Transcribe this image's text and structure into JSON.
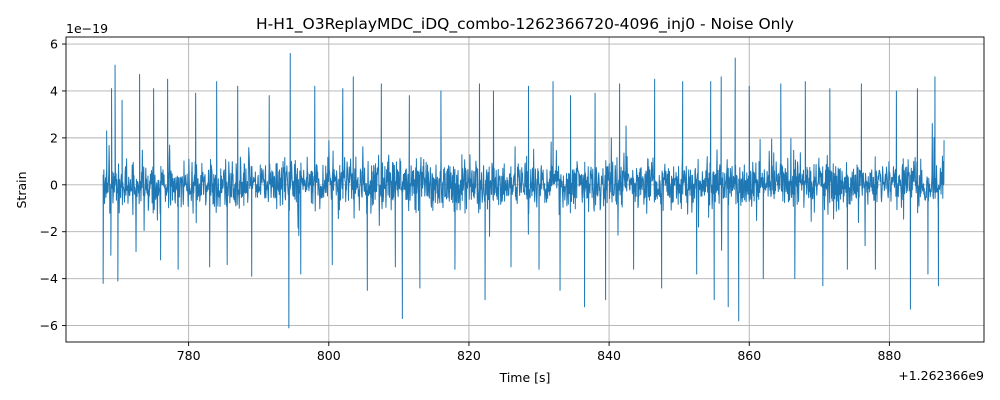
{
  "chart_data": {
    "type": "line",
    "title": "H-H1_O3ReplayMDC_iDQ_combo-1262366720-4096_inj0 - Noise Only",
    "xlabel": "Time [s]",
    "ylabel": "Strain",
    "x_offset_label": "+1.262366e9",
    "y_scale_label": "1e−19",
    "xlim": [
      762.5,
      893.5
    ],
    "ylim": [
      -6.7,
      6.3
    ],
    "x_ticks": [
      780,
      800,
      820,
      840,
      860,
      880
    ],
    "x_tick_labels": [
      "780",
      "800",
      "820",
      "840",
      "860",
      "880"
    ],
    "y_ticks": [
      -6,
      -4,
      -2,
      0,
      2,
      4,
      6
    ],
    "y_tick_labels": [
      "−6",
      "−4",
      "−2",
      "0",
      "2",
      "4",
      "6"
    ],
    "grid": true,
    "legend": "none",
    "line_color": "#1f77b4",
    "series": [
      {
        "x_range": [
          767.8,
          887.8
        ],
        "points": [
          [
            767.8,
            -4.2
          ],
          [
            768.3,
            2.3
          ],
          [
            768.9,
            -3.0
          ],
          [
            769.0,
            4.1
          ],
          [
            769.5,
            5.1
          ],
          [
            769.9,
            -4.1
          ],
          [
            770.5,
            3.6
          ],
          [
            773.0,
            4.7
          ],
          [
            775.0,
            4.1
          ],
          [
            776.0,
            -3.2
          ],
          [
            777.0,
            4.5
          ],
          [
            778.5,
            -3.6
          ],
          [
            781.0,
            3.9
          ],
          [
            783.0,
            -3.5
          ],
          [
            784.0,
            4.4
          ],
          [
            785.5,
            -3.4
          ],
          [
            787.0,
            4.2
          ],
          [
            789.0,
            -3.9
          ],
          [
            791.5,
            3.8
          ],
          [
            794.3,
            -6.1
          ],
          [
            794.5,
            5.6
          ],
          [
            796.0,
            -3.8
          ],
          [
            798.0,
            4.2
          ],
          [
            800.5,
            -3.4
          ],
          [
            802.0,
            4.1
          ],
          [
            803.5,
            4.6
          ],
          [
            805.5,
            -4.5
          ],
          [
            807.5,
            4.3
          ],
          [
            809.5,
            -3.5
          ],
          [
            810.5,
            -5.7
          ],
          [
            811.5,
            3.8
          ],
          [
            813.0,
            -4.4
          ],
          [
            816.0,
            4.0
          ],
          [
            818.0,
            -3.6
          ],
          [
            821.5,
            4.3
          ],
          [
            822.3,
            -4.9
          ],
          [
            823.5,
            4.0
          ],
          [
            826.0,
            -3.5
          ],
          [
            828.5,
            4.2
          ],
          [
            830.0,
            -3.6
          ],
          [
            832.0,
            4.4
          ],
          [
            833.0,
            -4.5
          ],
          [
            834.5,
            3.8
          ],
          [
            836.5,
            -5.2
          ],
          [
            838.0,
            3.9
          ],
          [
            839.5,
            -4.9
          ],
          [
            841.5,
            4.3
          ],
          [
            843.5,
            -3.6
          ],
          [
            846.5,
            4.5
          ],
          [
            847.5,
            -4.4
          ],
          [
            850.5,
            4.4
          ],
          [
            852.5,
            -3.8
          ],
          [
            854.5,
            4.4
          ],
          [
            855.0,
            -4.9
          ],
          [
            856.0,
            4.6
          ],
          [
            857.0,
            -5.2
          ],
          [
            858.0,
            5.4
          ],
          [
            858.5,
            -5.8
          ],
          [
            860.0,
            4.2
          ],
          [
            862.0,
            -4.0
          ],
          [
            864.5,
            4.3
          ],
          [
            866.5,
            -4.0
          ],
          [
            868.0,
            4.4
          ],
          [
            870.5,
            -4.3
          ],
          [
            871.5,
            4.1
          ],
          [
            874.0,
            -3.6
          ],
          [
            876.0,
            4.3
          ],
          [
            878.0,
            -3.6
          ],
          [
            881.0,
            4.0
          ],
          [
            883.0,
            -5.3
          ],
          [
            884.0,
            4.1
          ],
          [
            885.5,
            -3.8
          ],
          [
            886.5,
            4.6
          ],
          [
            887.0,
            -4.3
          ],
          [
            887.8,
            1.9
          ]
        ]
      }
    ]
  }
}
